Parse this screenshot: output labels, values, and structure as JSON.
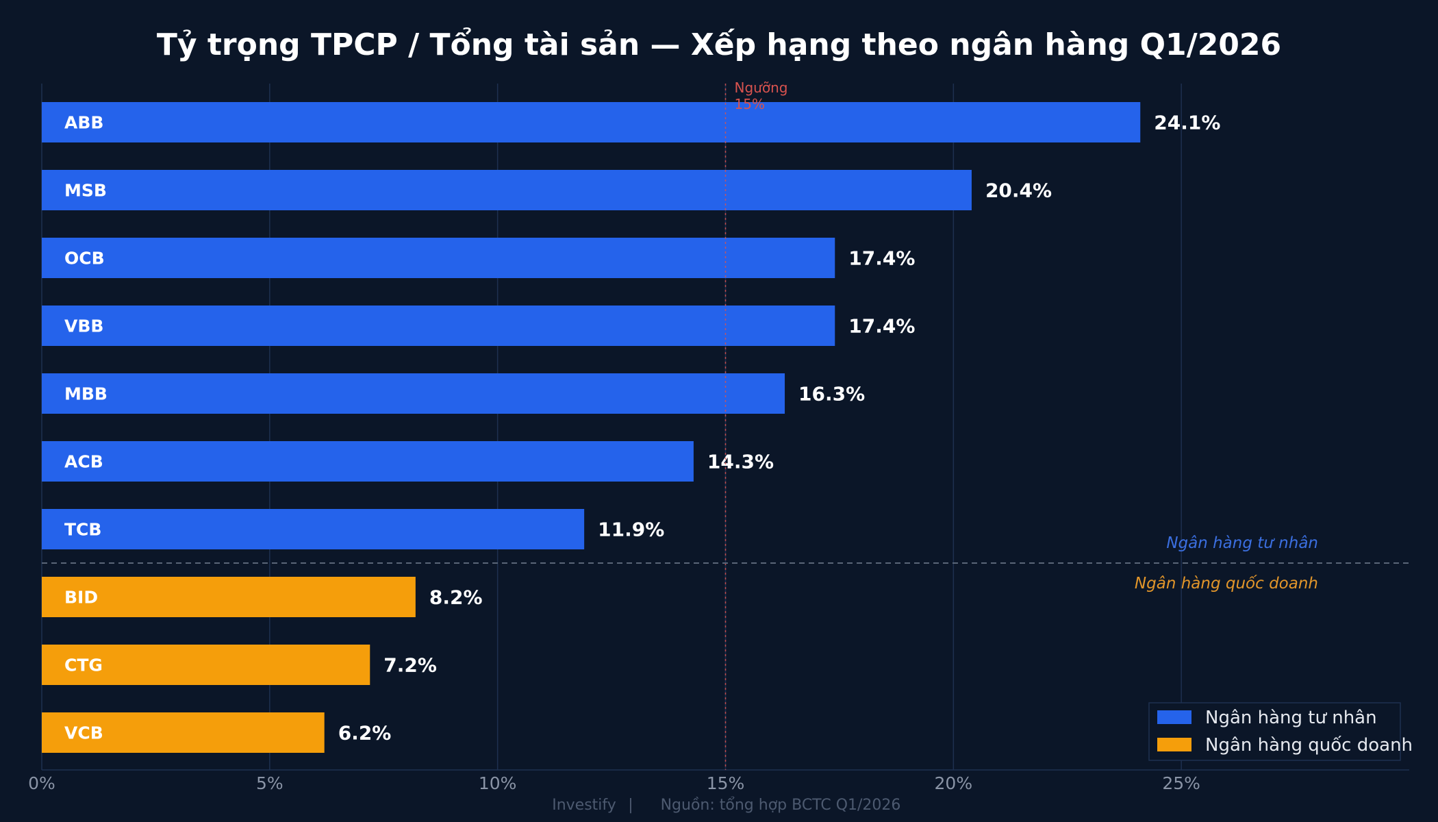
{
  "chart_data": {
    "type": "bar",
    "orientation": "horizontal",
    "title": "Tỷ trọng TPCP / Tổng tài sản — Xếp hạng theo ngân hàng Q1/2026",
    "categories": [
      "ABB",
      "MSB",
      "OCB",
      "VBB",
      "MBB",
      "ACB",
      "TCB",
      "BID",
      "CTG",
      "VCB"
    ],
    "values": [
      24.1,
      20.4,
      17.4,
      17.4,
      16.3,
      14.3,
      11.9,
      8.2,
      7.2,
      6.2
    ],
    "value_labels": [
      "24.1%",
      "20.4%",
      "17.4%",
      "17.4%",
      "16.3%",
      "14.3%",
      "11.9%",
      "8.2%",
      "7.2%",
      "6.2%"
    ],
    "groups": [
      "private",
      "private",
      "private",
      "private",
      "private",
      "private",
      "private",
      "state",
      "state",
      "state"
    ],
    "series": [
      {
        "name": "Ngân hàng tư nhân",
        "key": "private",
        "color": "#2563eb"
      },
      {
        "name": "Ngân hàng quốc doanh",
        "key": "state",
        "color": "#f59e0b"
      }
    ],
    "xlim": [
      0,
      30
    ],
    "x_ticks": [
      0,
      5,
      10,
      15,
      20,
      25
    ],
    "x_tick_labels": [
      "0%",
      "5%",
      "10%",
      "15%",
      "20%",
      "25%"
    ],
    "grid": true,
    "threshold": {
      "value": 15,
      "label_line1": "Ngưỡng",
      "label_line2": "15%",
      "color": "#d9534f"
    },
    "group_divider_labels": {
      "above": "Ngân hàng tư nhân",
      "below": "Ngân hàng quốc doanh"
    },
    "legend_position": "bottom-right"
  },
  "footer": {
    "brand": "Investify",
    "separator": "|",
    "source": "Nguồn: tổng hợp BCTC Q1/2026"
  },
  "colors": {
    "background": "#0b1628",
    "grid": "#1e3050",
    "divider": "#5a6678",
    "private_text": "#3b6fe0",
    "state_text": "#e3962a"
  }
}
